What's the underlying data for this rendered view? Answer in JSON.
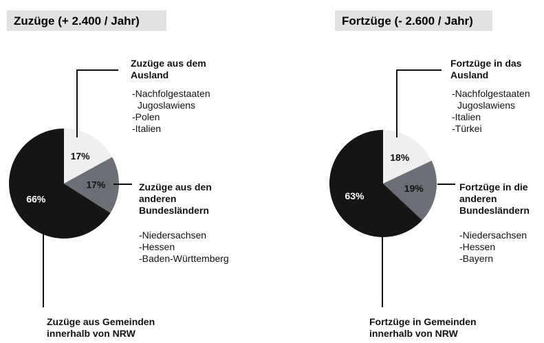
{
  "chart_data": [
    {
      "type": "pie",
      "title": "Zuzüge (+ 2.400 / Jahr)",
      "categories": [
        "Zuzüge aus dem Ausland",
        "Zuzüge aus den anderen Bundesländern",
        "Zuzüge aus Gemeinden innerhalb von NRW"
      ],
      "details": [
        [
          "-Nachfolgestaaten Jugoslawiens",
          "-Polen",
          "-Italien"
        ],
        [
          "-Niedersachsen",
          "-Hessen",
          "-Baden-Württemberg"
        ]
      ],
      "values": [
        17,
        17,
        66
      ],
      "value_labels": [
        "17%",
        "17%",
        "66%"
      ],
      "colors": [
        "#efefef",
        "#6c7076",
        "#151515"
      ]
    },
    {
      "type": "pie",
      "title": "Fortzüge (- 2.600 / Jahr)",
      "categories": [
        "Fortzüge in das Ausland",
        "Fortzüge in die anderen Bundesländern",
        "Fortzüge in Gemeinden innerhalb von NRW"
      ],
      "details": [
        [
          "-Nachfolgestaaten Jugoslawiens",
          "-Italien",
          "-Türkei"
        ],
        [
          "-Niedersachsen",
          "-Hessen",
          "-Bayern"
        ]
      ],
      "values": [
        18,
        19,
        63
      ],
      "value_labels": [
        "18%",
        "19%",
        "63%"
      ],
      "colors": [
        "#efefef",
        "#6c7076",
        "#151515"
      ]
    }
  ]
}
